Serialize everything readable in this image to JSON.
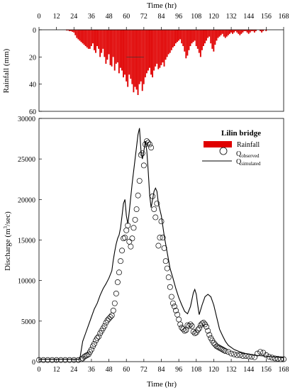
{
  "chart_data": [
    {
      "panel": "rainfall",
      "type": "bar",
      "xlabel": "Time (hr)",
      "ylabel": "Rainfall (mm)",
      "xlim": [
        0,
        168
      ],
      "ylim": [
        0,
        60
      ],
      "y_inverted": true,
      "x_ticks": [
        "0",
        "12",
        "24",
        "36",
        "48",
        "60",
        "72",
        "84",
        "96",
        "108",
        "120",
        "132",
        "144",
        "156",
        "168"
      ],
      "y_ticks": [
        "0",
        "20",
        "40",
        "60"
      ],
      "color": "#e00000",
      "series": [
        {
          "values_hourly_from_t1": [
            0,
            0,
            0,
            0,
            0,
            0,
            0,
            0,
            0,
            0,
            0,
            0,
            0,
            0,
            0,
            0,
            0,
            0,
            0.5,
            0.5,
            1,
            1,
            1.5,
            2,
            4,
            6,
            7,
            8,
            9,
            10,
            11,
            12,
            13,
            14,
            14,
            12,
            10,
            15,
            17,
            12,
            14,
            20,
            17,
            14,
            20,
            25,
            22,
            18,
            26,
            27,
            20,
            30,
            25,
            24,
            32,
            28,
            30,
            35,
            33,
            38,
            42,
            33,
            36,
            40,
            46,
            42,
            44,
            48,
            40,
            38,
            45,
            40,
            35,
            32,
            30,
            28,
            33,
            35,
            30,
            27,
            25,
            29,
            28,
            26,
            24,
            27,
            22,
            20,
            18,
            17,
            15,
            13,
            12,
            10,
            9,
            8,
            7,
            10,
            12,
            16,
            21,
            19,
            15,
            12,
            10,
            9,
            8,
            12,
            14,
            17,
            20,
            15,
            12,
            10,
            8,
            6,
            5,
            10,
            14,
            16,
            11,
            8,
            6,
            5,
            4,
            3,
            5,
            6,
            5,
            4,
            3,
            2,
            3,
            2,
            1,
            2,
            3,
            4,
            3,
            2,
            1,
            1,
            2,
            3,
            2,
            1,
            1,
            2,
            1,
            0,
            0,
            1,
            2,
            1,
            0,
            1,
            0,
            0,
            0,
            0,
            0,
            0,
            0,
            0,
            0,
            0
          ]
        }
      ],
      "peak": {
        "t": 68,
        "value": 48
      }
    },
    {
      "panel": "discharge",
      "type": "scatter",
      "xlabel": "Time (hr)",
      "ylabel_main": "Discharge (m",
      "ylabel_sup": "3",
      "ylabel_tail": "/sec)",
      "xlim": [
        0,
        168
      ],
      "ylim": [
        0,
        30000
      ],
      "x_ticks": [
        "0",
        "12",
        "24",
        "36",
        "48",
        "60",
        "72",
        "84",
        "96",
        "108",
        "120",
        "132",
        "144",
        "156",
        "168"
      ],
      "y_ticks": [
        "0",
        "5000",
        "10000",
        "15000",
        "20000",
        "25000",
        "30000"
      ],
      "legend": {
        "title": "Lilin bridge",
        "rainfall": "Rainfall",
        "q_observed_base": "Q",
        "q_observed_sub": "observed",
        "q_simulated_base": "Q",
        "q_simulated_sub": "simulated",
        "placement": "top-right"
      },
      "series": [
        {
          "name": "Q observed",
          "marker": "open-circle",
          "points": [
            [
              0,
              200
            ],
            [
              3,
              200
            ],
            [
              6,
              200
            ],
            [
              9,
              200
            ],
            [
              12,
              200
            ],
            [
              15,
              200
            ],
            [
              18,
              200
            ],
            [
              21,
              200
            ],
            [
              24,
              200
            ],
            [
              27,
              200
            ],
            [
              29,
              300
            ],
            [
              30,
              400
            ],
            [
              31,
              600
            ],
            [
              32,
              700
            ],
            [
              33,
              800
            ],
            [
              34,
              900
            ],
            [
              35,
              1200
            ],
            [
              36,
              1500
            ],
            [
              37,
              1900
            ],
            [
              38,
              2200
            ],
            [
              39,
              2600
            ],
            [
              40,
              2900
            ],
            [
              41,
              3100
            ],
            [
              42,
              3500
            ],
            [
              43,
              3800
            ],
            [
              44,
              4100
            ],
            [
              45,
              4400
            ],
            [
              46,
              4800
            ],
            [
              47,
              5100
            ],
            [
              48,
              5300
            ],
            [
              49,
              5500
            ],
            [
              50,
              5700
            ],
            [
              51,
              6300
            ],
            [
              52,
              7200
            ],
            [
              53,
              8400
            ],
            [
              54,
              9800
            ],
            [
              55,
              11000
            ],
            [
              56,
              12400
            ],
            [
              57,
              13700
            ],
            [
              58,
              15200
            ],
            [
              59,
              15300
            ],
            [
              60,
              16200
            ],
            [
              61,
              16800
            ],
            [
              62,
              14800
            ],
            [
              63,
              14200
            ],
            [
              64,
              15200
            ],
            [
              65,
              16500
            ],
            [
              66,
              17500
            ],
            [
              67,
              18800
            ],
            [
              68,
              20500
            ],
            [
              69,
              22300
            ],
            [
              70,
              25500
            ],
            [
              71,
              25700
            ],
            [
              72,
              24200
            ],
            [
              73,
              26800
            ],
            [
              74,
              27200
            ],
            [
              75,
              27000
            ],
            [
              76,
              26800
            ],
            [
              77,
              26400
            ],
            [
              78,
              20400
            ],
            [
              79,
              18800
            ],
            [
              80,
              17800
            ],
            [
              81,
              19500
            ],
            [
              82,
              14300
            ],
            [
              83,
              15300
            ],
            [
              84,
              17300
            ],
            [
              85,
              15300
            ],
            [
              86,
              14000
            ],
            [
              87,
              12400
            ],
            [
              88,
              11500
            ],
            [
              89,
              10400
            ],
            [
              90,
              9200
            ],
            [
              91,
              8000
            ],
            [
              92,
              7200
            ],
            [
              93,
              6800
            ],
            [
              94,
              6300
            ],
            [
              95,
              5800
            ],
            [
              96,
              5200
            ],
            [
              97,
              4600
            ],
            [
              98,
              4200
            ],
            [
              99,
              4000
            ],
            [
              100,
              3800
            ],
            [
              101,
              3900
            ],
            [
              102,
              4500
            ],
            [
              103,
              4400
            ],
            [
              104,
              4600
            ],
            [
              105,
              4400
            ],
            [
              106,
              3700
            ],
            [
              107,
              3500
            ],
            [
              108,
              3600
            ],
            [
              109,
              3900
            ],
            [
              110,
              4100
            ],
            [
              111,
              4500
            ],
            [
              112,
              4700
            ],
            [
              113,
              4800
            ],
            [
              114,
              4600
            ],
            [
              115,
              4300
            ],
            [
              116,
              3800
            ],
            [
              117,
              3300
            ],
            [
              118,
              2900
            ],
            [
              119,
              2600
            ],
            [
              120,
              2300
            ],
            [
              121,
              2100
            ],
            [
              122,
              1900
            ],
            [
              123,
              1800
            ],
            [
              124,
              1700
            ],
            [
              125,
              1600
            ],
            [
              126,
              1500
            ],
            [
              127,
              1400
            ],
            [
              128,
              1300
            ],
            [
              130,
              1200
            ],
            [
              132,
              1000
            ],
            [
              134,
              900
            ],
            [
              136,
              800
            ],
            [
              138,
              800
            ],
            [
              140,
              700
            ],
            [
              142,
              700
            ],
            [
              144,
              650
            ],
            [
              146,
              600
            ],
            [
              148,
              550
            ],
            [
              150,
              1000
            ],
            [
              152,
              1200
            ],
            [
              154,
              1100
            ],
            [
              156,
              800
            ],
            [
              158,
              600
            ],
            [
              160,
              500
            ],
            [
              162,
              400
            ],
            [
              164,
              350
            ],
            [
              166,
              300
            ],
            [
              168,
              300
            ]
          ]
        },
        {
          "name": "Q simulated",
          "marker": "line",
          "points": [
            [
              0,
              300
            ],
            [
              20,
              300
            ],
            [
              28,
              300
            ],
            [
              30,
              2500
            ],
            [
              32,
              3500
            ],
            [
              34,
              4500
            ],
            [
              36,
              5500
            ],
            [
              38,
              6500
            ],
            [
              40,
              7200
            ],
            [
              42,
              8200
            ],
            [
              44,
              9000
            ],
            [
              46,
              9600
            ],
            [
              48,
              10300
            ],
            [
              50,
              11200
            ],
            [
              51,
              12500
            ],
            [
              52,
              13600
            ],
            [
              53,
              14500
            ],
            [
              54,
              15200
            ],
            [
              55,
              15600
            ],
            [
              56,
              16500
            ],
            [
              57,
              18000
            ],
            [
              58,
              19500
            ],
            [
              59,
              20000
            ],
            [
              60,
              18000
            ],
            [
              61,
              17000
            ],
            [
              62,
              18500
            ],
            [
              64,
              22000
            ],
            [
              66,
              25000
            ],
            [
              68,
              28000
            ],
            [
              69,
              28800
            ],
            [
              70,
              26000
            ],
            [
              71,
              25000
            ],
            [
              72,
              26000
            ],
            [
              73,
              27200
            ],
            [
              74,
              26000
            ],
            [
              75,
              23500
            ],
            [
              76,
              20500
            ],
            [
              77,
              19000
            ],
            [
              78,
              20000
            ],
            [
              79,
              21000
            ],
            [
              80,
              21400
            ],
            [
              81,
              21000
            ],
            [
              82,
              19500
            ],
            [
              84,
              18000
            ],
            [
              86,
              15500
            ],
            [
              88,
              13500
            ],
            [
              90,
              11500
            ],
            [
              92,
              10300
            ],
            [
              94,
              9000
            ],
            [
              96,
              7900
            ],
            [
              98,
              7000
            ],
            [
              100,
              6200
            ],
            [
              102,
              5900
            ],
            [
              104,
              6800
            ],
            [
              106,
              8500
            ],
            [
              107,
              8900
            ],
            [
              108,
              8300
            ],
            [
              109,
              7000
            ],
            [
              110,
              5800
            ],
            [
              112,
              7000
            ],
            [
              114,
              8000
            ],
            [
              116,
              8300
            ],
            [
              118,
              8000
            ],
            [
              120,
              7000
            ],
            [
              122,
              5500
            ],
            [
              124,
              4000
            ],
            [
              126,
              3200
            ],
            [
              128,
              2500
            ],
            [
              130,
              2000
            ],
            [
              134,
              1500
            ],
            [
              138,
              1200
            ],
            [
              142,
              1000
            ],
            [
              148,
              800
            ],
            [
              154,
              700
            ],
            [
              160,
              600
            ],
            [
              168,
              500
            ]
          ]
        }
      ]
    }
  ]
}
